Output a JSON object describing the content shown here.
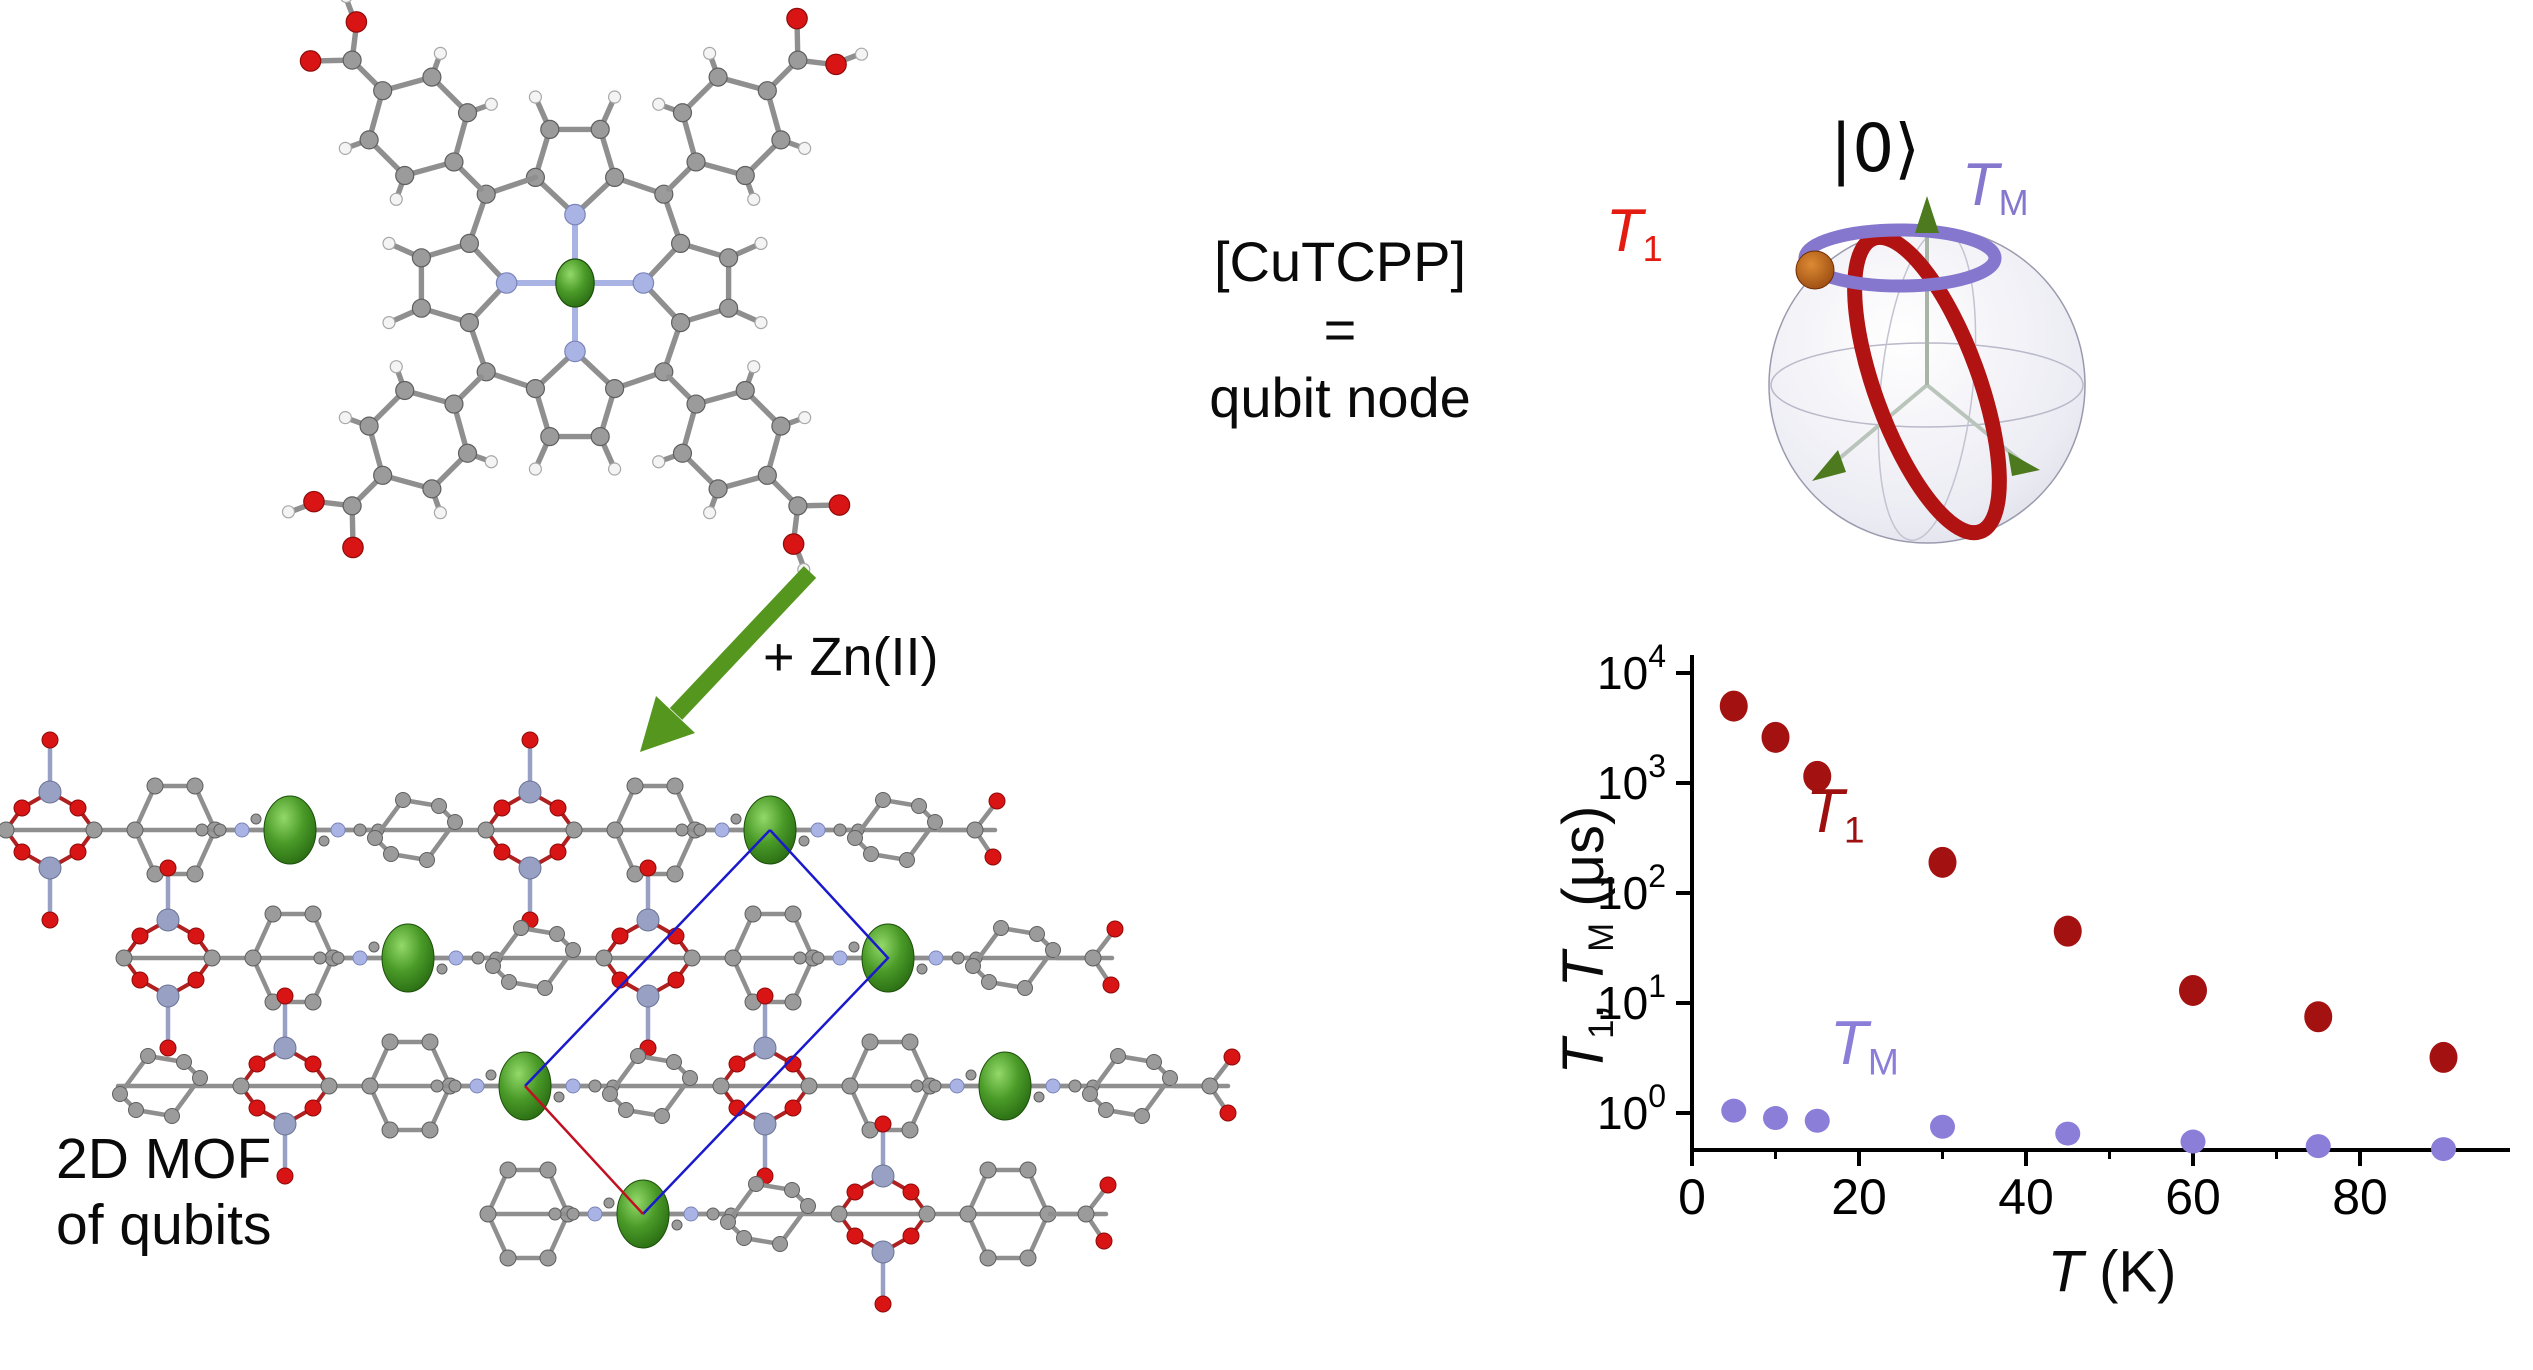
{
  "cutcpp_block": {
    "line1": "[CuTCPP]",
    "line2": "=",
    "line3": "qubit node"
  },
  "reaction_label": "+ Zn(II)",
  "mof_caption": {
    "line1": "2D MOF",
    "line2": "of qubits"
  },
  "bloch_sphere": {
    "state_label": "|0⟩",
    "t1_label": {
      "main": "T",
      "sub": "1"
    },
    "tm_label": {
      "main": "T",
      "sub": "M"
    }
  },
  "chart_data": {
    "type": "scatter",
    "x_axis": {
      "label_italic": "T",
      "label_rest": " (K)",
      "ticks": [
        0,
        20,
        40,
        60,
        80
      ],
      "minor_ticks": [
        10,
        30,
        50,
        70,
        90
      ],
      "range": [
        0,
        98
      ]
    },
    "y_axis": {
      "scale": "log",
      "units": " (μs)",
      "label": {
        "t1_main": "T",
        "t1_sub": "1",
        "sep": ", ",
        "tm_main": "T",
        "tm_sub": "M"
      },
      "tick_exponents": [
        4,
        3,
        2,
        1,
        0
      ],
      "range_exponents": [
        -0.35,
        4.35
      ]
    },
    "series": [
      {
        "name": "T1",
        "label_main": "T",
        "label_sub": "1",
        "color": "#a31111",
        "x": [
          5,
          10,
          15,
          30,
          45,
          60,
          75,
          90
        ],
        "y": [
          5000,
          2600,
          1150,
          190,
          45,
          13,
          7.5,
          3.2
        ]
      },
      {
        "name": "TM",
        "label_main": "T",
        "label_sub": "M",
        "color": "#8b7ed8",
        "x": [
          5,
          10,
          15,
          30,
          45,
          60,
          75,
          90
        ],
        "y": [
          1.05,
          0.9,
          0.85,
          0.75,
          0.65,
          0.55,
          0.5,
          0.47
        ]
      }
    ]
  },
  "colors": {
    "cu": "#3f8a1c",
    "n": "#aab4e4",
    "zn": "#98a1c4",
    "o": "#d81414",
    "c": "#9b9b9b",
    "h": "#f4f4f4",
    "bond": "#8f8f8f",
    "ring-bond": "#b02020",
    "cell-blue": "#1a1acc",
    "cell-red": "#c01022",
    "arrow-green": "#55961e",
    "t1-bright": "#e41b10",
    "tm-purple": "#8577cd",
    "t1-dark": "#9e0f0f",
    "tm-dot": "#8b7ed8",
    "axis": "#000000"
  }
}
